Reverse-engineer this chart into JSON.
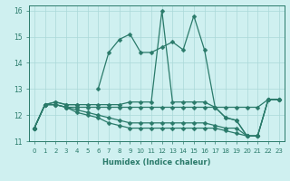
{
  "xlabel": "Humidex (Indice chaleur)",
  "x": [
    0,
    1,
    2,
    3,
    4,
    5,
    6,
    7,
    8,
    9,
    10,
    11,
    12,
    13,
    14,
    15,
    16,
    17,
    18,
    19,
    20,
    21,
    22,
    23
  ],
  "line1": [
    11.5,
    12.4,
    12.5,
    12.4,
    12.4,
    null,
    13.0,
    14.4,
    14.9,
    15.1,
    14.4,
    14.4,
    14.6,
    14.8,
    14.5,
    15.8,
    14.5,
    12.3,
    11.9,
    11.8,
    11.2,
    11.2,
    null,
    null
  ],
  "line2": [
    11.5,
    12.4,
    12.5,
    12.4,
    12.4,
    12.4,
    12.4,
    12.4,
    12.4,
    12.5,
    12.5,
    12.5,
    16.0,
    12.5,
    12.5,
    12.5,
    12.5,
    12.3,
    11.9,
    11.8,
    11.2,
    11.2,
    12.6,
    12.6
  ],
  "line3": [
    11.5,
    12.4,
    12.4,
    12.3,
    12.3,
    12.3,
    12.3,
    12.3,
    12.3,
    12.3,
    12.3,
    12.3,
    12.3,
    12.3,
    12.3,
    12.3,
    12.3,
    12.3,
    12.3,
    12.3,
    12.3,
    12.3,
    12.6,
    12.6
  ],
  "line4": [
    11.5,
    12.4,
    12.4,
    12.3,
    12.2,
    12.1,
    12.0,
    11.9,
    11.8,
    11.7,
    11.7,
    11.7,
    11.7,
    11.7,
    11.7,
    11.7,
    11.7,
    11.6,
    11.5,
    11.5,
    11.2,
    11.2,
    12.6,
    12.6
  ],
  "line5": [
    11.5,
    12.4,
    12.4,
    12.3,
    12.1,
    12.0,
    11.9,
    11.7,
    11.6,
    11.5,
    11.5,
    11.5,
    11.5,
    11.5,
    11.5,
    11.5,
    11.5,
    11.5,
    11.4,
    11.3,
    11.2,
    11.2,
    12.6,
    12.6
  ],
  "ylim": [
    11.0,
    16.2
  ],
  "xlim": [
    -0.5,
    23.5
  ],
  "yticks": [
    11,
    12,
    13,
    14,
    15,
    16
  ],
  "bg_color": "#cff0f0",
  "grid_color": "#aad8d8",
  "line_color": "#2a7a6a",
  "markersize": 2.5
}
